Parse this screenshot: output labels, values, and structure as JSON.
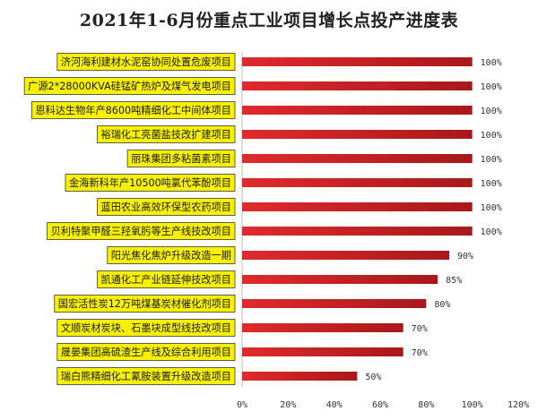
{
  "chart_data": {
    "type": "bar",
    "orientation": "horizontal",
    "title": "2021年1-6月份重点工业项目增长点投产进度表",
    "categories": [
      "济河海利建材水泥窑协同处置危废项目",
      "广源2*28000KVA硅锰矿热炉及煤气发电项目",
      "恩科达生物年产8600吨精细化工中间体项目",
      "裕瑞化工亮菌盐技改扩建项目",
      "丽珠集团多粘菌素项目",
      "金海新科年产10500吨氯代苯酚项目",
      "蓝田农业高效环保型农药项目",
      "贝利特聚甲醛三羟氧肟等生产线技改项目",
      "阳光焦化焦炉升级改造一期",
      "凯通化工产业链延伸技改项目",
      "国宏活性炭12万吨煤基炭材催化剂项目",
      "文顺炭材炭块、石墨块成型线技改项目",
      "晟晏集团高硫渣生产线及综合利用项目",
      "瑞白熊精细化工氰胺装置升级改造项目"
    ],
    "values": [
      100,
      100,
      100,
      100,
      100,
      100,
      100,
      100,
      90,
      85,
      80,
      70,
      70,
      50
    ],
    "value_labels": [
      "100%",
      "100%",
      "100%",
      "100%",
      "100%",
      "100%",
      "100%",
      "100%",
      "90%",
      "85%",
      "80%",
      "70%",
      "70%",
      "50%"
    ],
    "xlim": [
      0,
      120
    ],
    "x_ticks": [
      "0%",
      "20%",
      "40%",
      "60%",
      "80%",
      "100%",
      "120%"
    ],
    "grid": false,
    "legend": "none",
    "colors": {
      "bar_dark": "#a8181b",
      "bar_light": "#e02a2e",
      "label_bg": "#f7f100",
      "label_border": "#3a3a3a"
    }
  }
}
